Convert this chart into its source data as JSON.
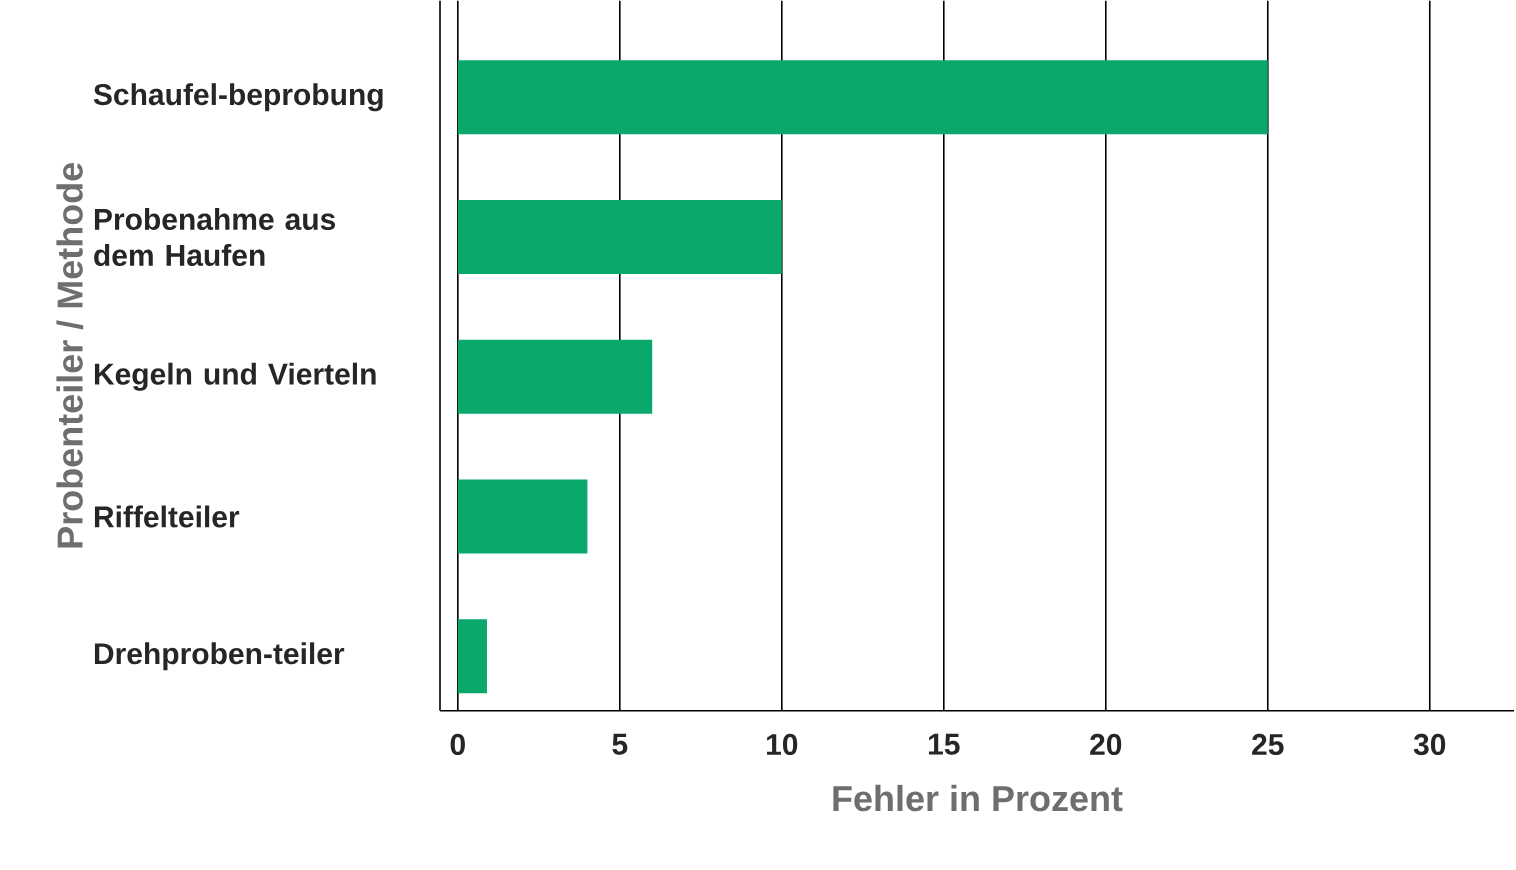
{
  "chart_data": {
    "type": "bar",
    "orientation": "horizontal",
    "categories": [
      "Schaufel-beprobung",
      "Probenahme aus dem Haufen",
      "Kegeln und Vierteln",
      "Riffelteiler",
      "Drehproben-teiler"
    ],
    "values": [
      25,
      10,
      6,
      4,
      0.9
    ],
    "color": "#0aa86b",
    "xlim": [
      -0.55,
      32.6
    ],
    "xticks": [
      0,
      5,
      10,
      15,
      20,
      25,
      30
    ],
    "grid": "x",
    "xlabel": "Fehler in Prozent",
    "ylabel": "Probenteiler / Methode"
  }
}
